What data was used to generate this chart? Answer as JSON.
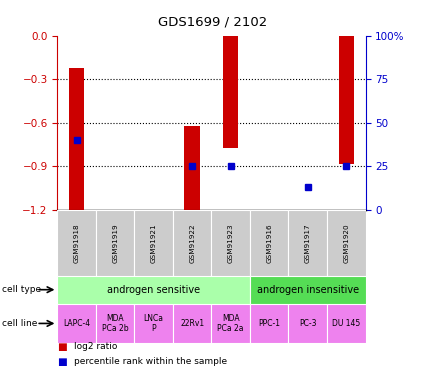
{
  "title": "GDS1699 / 2102",
  "samples": [
    "GSM91918",
    "GSM91919",
    "GSM91921",
    "GSM91922",
    "GSM91923",
    "GSM91916",
    "GSM91917",
    "GSM91920"
  ],
  "bar_data": [
    [
      -1.22,
      -0.22
    ],
    [
      0,
      0
    ],
    [
      0,
      0
    ],
    [
      -1.22,
      -0.62
    ],
    [
      -0.77,
      0.0
    ],
    [
      -1.22,
      -1.2
    ],
    [
      -1.22,
      -1.2
    ],
    [
      -0.88,
      0.0
    ]
  ],
  "percentile_ranks": [
    40,
    null,
    null,
    25,
    25,
    null,
    13,
    25
  ],
  "ylim_left": [
    -1.2,
    0.0
  ],
  "yticks_left": [
    0.0,
    -0.3,
    -0.6,
    -0.9,
    -1.2
  ],
  "yticks_right": [
    0,
    25,
    50,
    75,
    100
  ],
  "cell_types": [
    {
      "label": "androgen sensitive",
      "start": 0,
      "end": 5,
      "color": "#AAFFAA"
    },
    {
      "label": "androgen insensitive",
      "start": 5,
      "end": 8,
      "color": "#55DD55"
    }
  ],
  "cell_lines": [
    "LAPC-4",
    "MDA\nPCa 2b",
    "LNCa\nP",
    "22Rv1",
    "MDA\nPCa 2a",
    "PPC-1",
    "PC-3",
    "DU 145"
  ],
  "cell_line_color": "#EE82EE",
  "bar_color": "#CC0000",
  "percentile_color": "#0000CC",
  "left_tick_color": "#CC0000",
  "right_tick_color": "#0000CC",
  "bg_color": "#FFFFFF",
  "sample_bg_color": "#CCCCCC"
}
